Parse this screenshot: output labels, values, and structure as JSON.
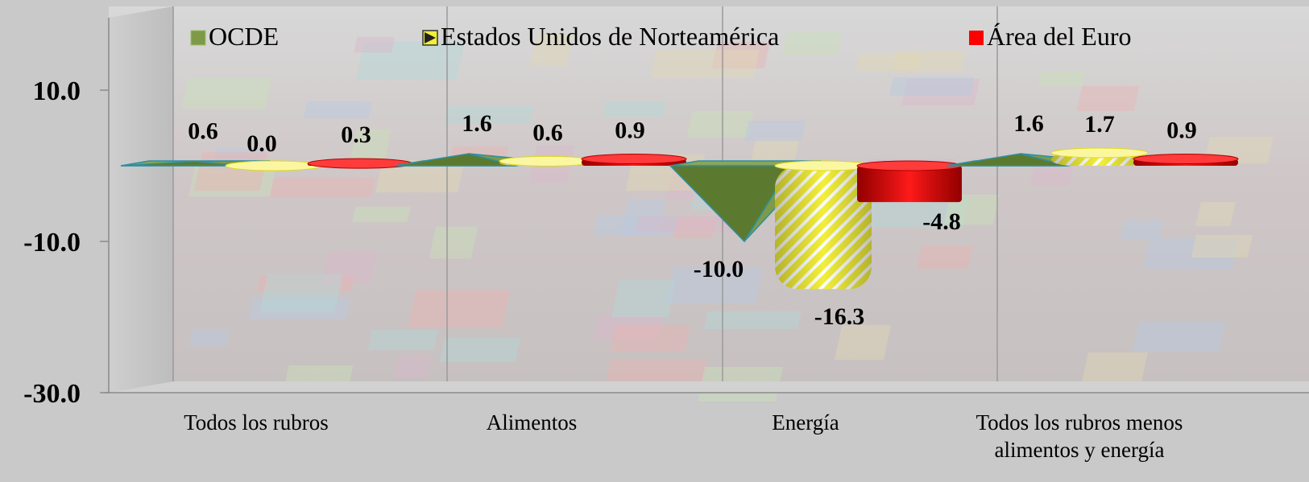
{
  "chart_data": {
    "type": "bar",
    "title": "",
    "xlabel": "",
    "ylabel": "",
    "ylim": [
      -30,
      20
    ],
    "yticks": [
      "10.0",
      "-10.0",
      "-30.0"
    ],
    "ytick_values": [
      10,
      -10,
      -30
    ],
    "categories": [
      [
        "Todos los rubros"
      ],
      [
        "Alimentos"
      ],
      [
        "Energía"
      ],
      [
        "Todos los rubros menos",
        "alimentos y energía"
      ]
    ],
    "series": [
      {
        "name": "OCDE",
        "shape": "pyramid",
        "color": "#6b8a3a",
        "values": [
          0.6,
          1.6,
          -10.0,
          1.6
        ],
        "labels": [
          "0.6",
          "1.6",
          "-10.0",
          "1.6"
        ]
      },
      {
        "name": "Estados Unidos de Norteamérica",
        "shape": "cylinder",
        "color": "#f2ef3a",
        "values": [
          0.0,
          0.6,
          -16.3,
          1.7
        ],
        "labels": [
          "0.0",
          "0.6",
          "-16.3",
          "1.7"
        ]
      },
      {
        "name": "Área del Euro",
        "shape": "cylinder",
        "color": "#ff0000",
        "values": [
          0.3,
          0.9,
          -4.8,
          0.9
        ],
        "labels": [
          "0.3",
          "0.9",
          "-4.8",
          "0.9"
        ]
      }
    ],
    "legend_position": "top",
    "grid": false
  }
}
